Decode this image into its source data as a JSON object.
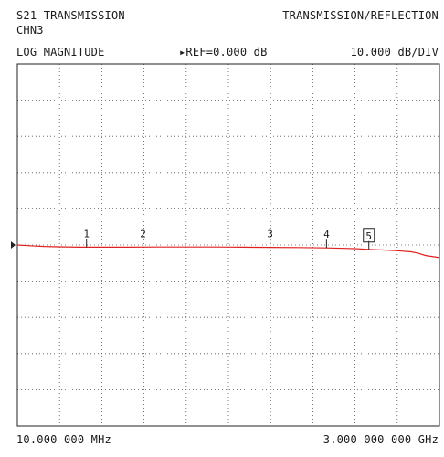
{
  "header": {
    "measurement": "S21 TRANSMISSION",
    "mode": "TRANSMISSION/REFLECTION",
    "channel": "CHN3",
    "format": "LOG MAGNITUDE",
    "reference": "▸REF=0.000 dB",
    "scale": "10.000 dB/DIV"
  },
  "footer": {
    "start_freq": "10.000 000 MHz",
    "stop_freq": "3.000 000 000 GHz"
  },
  "colors": {
    "trace": "#e02020",
    "grid": "#555555",
    "frame": "#222222",
    "text": "#1a1a1a"
  },
  "chart_data": {
    "type": "line",
    "title": "S21 TRANSMISSION",
    "xlabel": "",
    "ylabel": "",
    "x_unit": "GHz",
    "xlim": [
      0.01,
      3.0
    ],
    "ylim": [
      -50,
      50
    ],
    "y_divisions": 10,
    "x_divisions": 10,
    "reference_level_db": 0,
    "grid": true,
    "series": [
      {
        "x": [
          0.01,
          0.1,
          0.2,
          0.3,
          0.45,
          0.6,
          0.8,
          1.0,
          1.2,
          1.4,
          1.6,
          1.8,
          2.0,
          2.2,
          2.4,
          2.5,
          2.6,
          2.7,
          2.8,
          2.85,
          2.9,
          3.0
        ],
        "values": [
          0.0,
          -0.2,
          -0.4,
          -0.5,
          -0.6,
          -0.6,
          -0.6,
          -0.55,
          -0.55,
          -0.55,
          -0.6,
          -0.65,
          -0.7,
          -0.8,
          -1.0,
          -1.2,
          -1.4,
          -1.6,
          -1.9,
          -2.3,
          -2.9,
          -3.5
        ]
      }
    ],
    "markers": [
      {
        "label": "1",
        "x": 0.5
      },
      {
        "label": "2",
        "x": 0.9
      },
      {
        "label": "3",
        "x": 1.8
      },
      {
        "label": "4",
        "x": 2.2
      },
      {
        "label": "5",
        "x": 2.5,
        "active": true
      }
    ]
  }
}
